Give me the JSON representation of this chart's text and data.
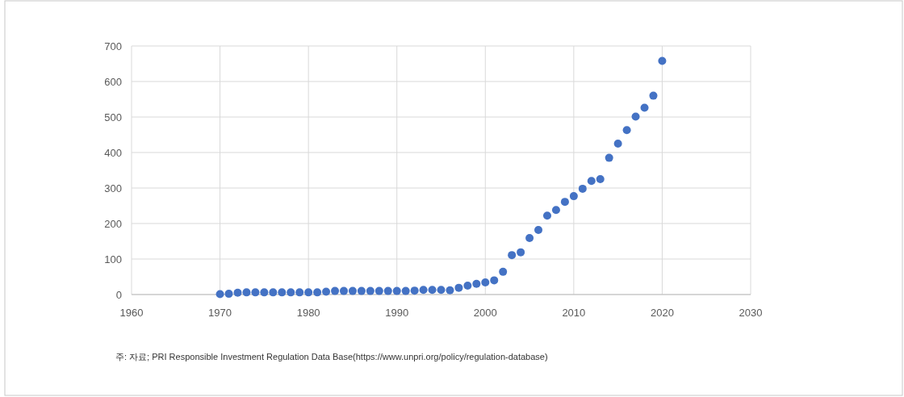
{
  "chart_data": {
    "type": "scatter",
    "color": "#4472c4",
    "marker": "circle",
    "grid": true,
    "x": [
      1970,
      1971,
      1972,
      1973,
      1974,
      1975,
      1976,
      1977,
      1978,
      1979,
      1980,
      1981,
      1982,
      1983,
      1984,
      1985,
      1986,
      1987,
      1988,
      1989,
      1990,
      1991,
      1992,
      1993,
      1994,
      1995,
      1996,
      1997,
      1998,
      1999,
      2000,
      2001,
      2002,
      2003,
      2004,
      2005,
      2006,
      2007,
      2008,
      2009,
      2010,
      2011,
      2012,
      2013,
      2014,
      2015,
      2016,
      2017,
      2018,
      2019,
      2020
    ],
    "values": [
      1,
      2,
      5,
      6,
      6,
      6,
      6,
      6,
      6,
      6,
      6,
      6,
      8,
      10,
      10,
      10,
      10,
      10,
      10,
      10,
      10,
      10,
      11,
      13,
      13,
      13,
      12,
      19,
      25,
      30,
      34,
      40,
      64,
      111,
      119,
      159,
      182,
      222,
      238,
      261,
      277,
      298,
      320,
      325,
      385,
      425,
      463,
      501,
      526,
      560,
      658
    ],
    "xlim": [
      1960,
      2030
    ],
    "xticks": [
      1960,
      1970,
      1980,
      1990,
      2000,
      2010,
      2020,
      2030
    ],
    "ylim": [
      0,
      700
    ],
    "yticks": [
      0,
      100,
      200,
      300,
      400,
      500,
      600,
      700
    ],
    "annotations": [
      "주: 자료; PRI Responsible Investment Regulation Data Base(https://www.unpri.org/policy/regulation-database)"
    ]
  }
}
